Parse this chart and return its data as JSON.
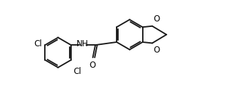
{
  "background_color": "#ffffff",
  "bond_color": "#1a1a1a",
  "text_color": "#000000",
  "bond_width": 1.4,
  "font_size": 8.5,
  "fig_width": 3.58,
  "fig_height": 1.52,
  "dpi": 100,
  "xlim": [
    0,
    10.0
  ],
  "ylim": [
    -1.5,
    3.5
  ]
}
